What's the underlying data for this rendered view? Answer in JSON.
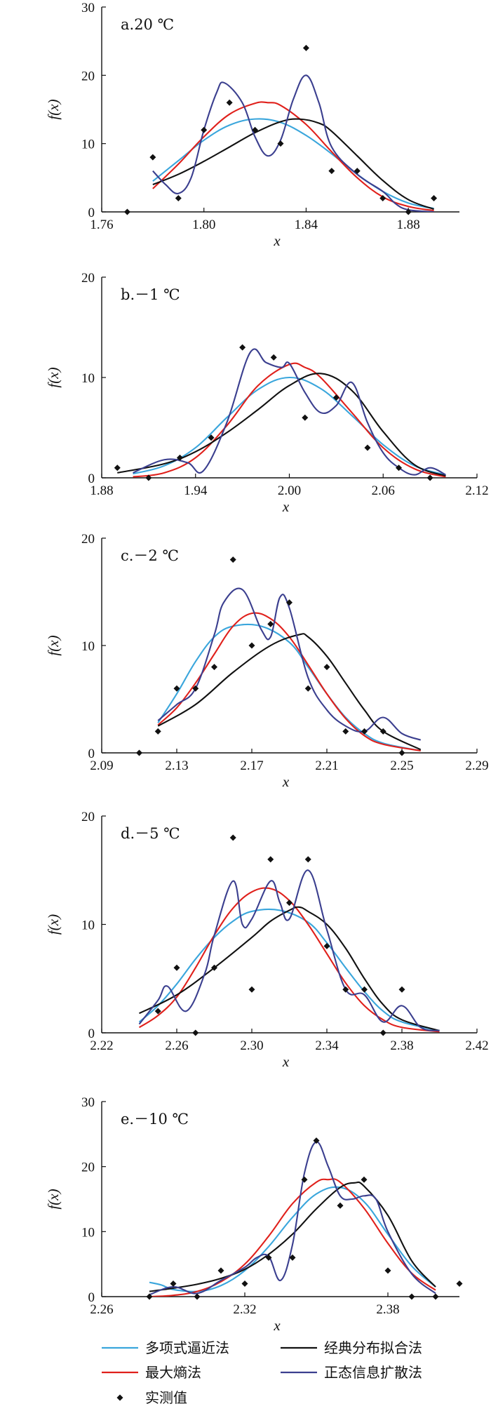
{
  "chart_data": [
    {
      "type": "line",
      "title": "a.20 ℃",
      "xlabel": "x",
      "ylabel": "f(x)",
      "xlim": [
        1.76,
        1.9
      ],
      "ylim": [
        0,
        30
      ],
      "xticks": [
        1.76,
        1.8,
        1.84,
        1.88
      ],
      "xtick_labels": [
        "1.76",
        "1.80",
        "1.84",
        "1.88"
      ],
      "yticks": [
        0,
        10,
        20,
        30
      ],
      "series": [
        {
          "name": "多项式逼近法",
          "x": [
            1.78,
            1.79,
            1.8,
            1.81,
            1.82,
            1.83,
            1.84,
            1.85,
            1.86,
            1.87,
            1.88,
            1.89
          ],
          "values": [
            4.5,
            7.5,
            10.5,
            12.7,
            13.6,
            13.1,
            11.2,
            8.5,
            5.5,
            3.0,
            1.3,
            0.5
          ]
        },
        {
          "name": "最大熵法",
          "x": [
            1.78,
            1.79,
            1.8,
            1.81,
            1.82,
            1.825,
            1.83,
            1.84,
            1.85,
            1.86,
            1.87,
            1.88,
            1.89
          ],
          "values": [
            3.4,
            7.0,
            11.0,
            14.3,
            15.9,
            16.0,
            15.6,
            12.8,
            8.8,
            5.0,
            2.2,
            0.8,
            0.2
          ]
        },
        {
          "name": "经典分布拟合法",
          "x": [
            1.78,
            1.79,
            1.8,
            1.81,
            1.82,
            1.83,
            1.837,
            1.845,
            1.85,
            1.86,
            1.87,
            1.88,
            1.89
          ],
          "values": [
            4.0,
            5.5,
            7.4,
            9.5,
            11.6,
            13.2,
            13.6,
            13.0,
            11.8,
            8.2,
            4.6,
            1.8,
            0.4
          ]
        },
        {
          "name": "正态信息扩散法",
          "x": [
            1.78,
            1.785,
            1.79,
            1.795,
            1.8,
            1.805,
            1.808,
            1.815,
            1.82,
            1.825,
            1.83,
            1.835,
            1.84,
            1.845,
            1.85,
            1.86,
            1.87,
            1.875,
            1.88,
            1.89
          ],
          "values": [
            6.0,
            4.0,
            2.7,
            5.0,
            12.0,
            17.5,
            18.9,
            16.0,
            11.0,
            8.2,
            10.5,
            16.5,
            20.0,
            16.0,
            9.5,
            5.5,
            3.0,
            1.2,
            0.3,
            0.0
          ]
        }
      ],
      "observed": {
        "name": "实测值",
        "x": [
          1.77,
          1.78,
          1.79,
          1.8,
          1.81,
          1.82,
          1.83,
          1.84,
          1.85,
          1.86,
          1.87,
          1.88,
          1.89
        ],
        "values": [
          0,
          8,
          2,
          12,
          16,
          12,
          10,
          24,
          6,
          6,
          2,
          0,
          2
        ]
      }
    },
    {
      "type": "line",
      "title": "b.－1 ℃",
      "xlabel": "x",
      "ylabel": "f(x)",
      "xlim": [
        1.88,
        2.12
      ],
      "ylim": [
        0,
        20
      ],
      "xticks": [
        1.88,
        1.94,
        2.0,
        2.06,
        2.12
      ],
      "xtick_labels": [
        "1.88",
        "1.94",
        "2.00",
        "2.06",
        "2.12"
      ],
      "yticks": [
        0,
        10,
        20
      ],
      "series": [
        {
          "name": "多项式逼近法",
          "x": [
            1.9,
            1.92,
            1.94,
            1.96,
            1.98,
            2.0,
            2.02,
            2.04,
            2.06,
            2.08,
            2.1
          ],
          "values": [
            0.4,
            1.2,
            3.0,
            6.0,
            8.8,
            10.0,
            8.9,
            6.2,
            3.3,
            1.2,
            0.3
          ]
        },
        {
          "name": "最大熵法",
          "x": [
            1.9,
            1.92,
            1.94,
            1.96,
            1.98,
            2.0,
            2.01,
            2.02,
            2.04,
            2.06,
            2.08,
            2.1
          ],
          "values": [
            0.1,
            0.5,
            2.0,
            5.2,
            9.2,
            11.3,
            11.0,
            10.0,
            6.5,
            3.0,
            0.9,
            0.1
          ]
        },
        {
          "name": "经典分布拟合法",
          "x": [
            1.89,
            1.92,
            1.94,
            1.96,
            1.98,
            2.0,
            2.02,
            2.04,
            2.06,
            2.08,
            2.1
          ],
          "values": [
            0.5,
            1.4,
            2.6,
            4.5,
            6.8,
            9.2,
            10.4,
            8.7,
            4.6,
            1.3,
            0.2
          ]
        },
        {
          "name": "正态信息扩散法",
          "x": [
            1.9,
            1.92,
            1.935,
            1.945,
            1.96,
            1.975,
            1.985,
            1.995,
            2.0,
            2.01,
            2.02,
            2.03,
            2.04,
            2.05,
            2.06,
            2.07,
            2.08,
            2.09,
            2.1
          ],
          "values": [
            0.5,
            1.8,
            1.5,
            0.7,
            5.5,
            12.5,
            11.5,
            11.0,
            11.4,
            8.5,
            6.5,
            7.2,
            9.5,
            5.5,
            2.5,
            1.0,
            0.3,
            1.0,
            0.3
          ]
        }
      ],
      "observed": {
        "name": "实测值",
        "x": [
          1.89,
          1.91,
          1.93,
          1.95,
          1.97,
          1.99,
          2.01,
          2.03,
          2.05,
          2.07,
          2.09
        ],
        "values": [
          1,
          0,
          2,
          4,
          13,
          12,
          6,
          8,
          3,
          1,
          0
        ]
      }
    },
    {
      "type": "line",
      "title": "c.－2 ℃",
      "xlabel": "x",
      "ylabel": "f(x)",
      "xlim": [
        2.09,
        2.29
      ],
      "ylim": [
        0,
        20
      ],
      "xticks": [
        2.09,
        2.13,
        2.17,
        2.21,
        2.25,
        2.29
      ],
      "xtick_labels": [
        "2.09",
        "2.13",
        "2.17",
        "2.21",
        "2.25",
        "2.29"
      ],
      "yticks": [
        0,
        10,
        20
      ],
      "series": [
        {
          "name": "多项式逼近法",
          "x": [
            2.12,
            2.13,
            2.14,
            2.15,
            2.16,
            2.175,
            2.19,
            2.2,
            2.21,
            2.22,
            2.23,
            2.24,
            2.26
          ],
          "values": [
            2.8,
            5.5,
            8.5,
            10.8,
            11.8,
            11.8,
            10.3,
            8.0,
            5.5,
            3.3,
            1.8,
            0.9,
            0.2
          ]
        },
        {
          "name": "最大熵法",
          "x": [
            2.12,
            2.13,
            2.14,
            2.15,
            2.16,
            2.17,
            2.18,
            2.19,
            2.2,
            2.21,
            2.22,
            2.23,
            2.24,
            2.26
          ],
          "values": [
            2.6,
            4.2,
            6.5,
            9.2,
            11.8,
            13.0,
            12.5,
            10.8,
            8.2,
            5.5,
            3.2,
            1.6,
            0.8,
            0.2
          ]
        },
        {
          "name": "经典分布拟合法",
          "x": [
            2.12,
            2.14,
            2.16,
            2.18,
            2.195,
            2.2,
            2.21,
            2.22,
            2.23,
            2.24,
            2.26
          ],
          "values": [
            2.5,
            4.5,
            7.5,
            10.0,
            11.0,
            10.8,
            9.0,
            6.5,
            4.0,
            2.0,
            0.3
          ]
        },
        {
          "name": "正态信息扩散法",
          "x": [
            2.12,
            2.13,
            2.14,
            2.15,
            2.155,
            2.165,
            2.175,
            2.18,
            2.185,
            2.19,
            2.2,
            2.21,
            2.22,
            2.23,
            2.24,
            2.25,
            2.26
          ],
          "values": [
            3.0,
            4.5,
            6.0,
            11.0,
            14.0,
            15.2,
            11.5,
            10.8,
            14.5,
            13.5,
            7.0,
            4.0,
            2.5,
            2.0,
            3.3,
            1.8,
            1.2
          ]
        }
      ],
      "observed": {
        "name": "实测值",
        "x": [
          2.11,
          2.12,
          2.13,
          2.14,
          2.15,
          2.16,
          2.17,
          2.18,
          2.19,
          2.2,
          2.21,
          2.22,
          2.23,
          2.24,
          2.25
        ],
        "values": [
          0,
          2,
          6,
          6,
          8,
          18,
          10,
          12,
          14,
          6,
          8,
          2,
          2,
          2,
          0
        ]
      }
    },
    {
      "type": "line",
      "title": "d.－5 ℃",
      "xlabel": "x",
      "ylabel": "f(x)",
      "xlim": [
        2.22,
        2.42
      ],
      "ylim": [
        0,
        20
      ],
      "xticks": [
        2.22,
        2.26,
        2.3,
        2.34,
        2.38,
        2.42
      ],
      "xtick_labels": [
        "2.22",
        "2.26",
        "2.30",
        "2.34",
        "2.38",
        "2.42"
      ],
      "yticks": [
        0,
        10,
        20
      ],
      "series": [
        {
          "name": "多项式逼近法",
          "x": [
            2.24,
            2.25,
            2.26,
            2.27,
            2.28,
            2.29,
            2.3,
            2.315,
            2.33,
            2.34,
            2.35,
            2.36,
            2.37,
            2.38,
            2.4
          ],
          "values": [
            1.0,
            2.5,
            4.5,
            6.8,
            8.8,
            10.3,
            11.2,
            11.3,
            10.2,
            8.3,
            6.0,
            3.8,
            2.0,
            1.0,
            0.2
          ]
        },
        {
          "name": "最大熵法",
          "x": [
            2.24,
            2.25,
            2.26,
            2.27,
            2.28,
            2.29,
            2.3,
            2.31,
            2.32,
            2.33,
            2.34,
            2.35,
            2.36,
            2.37,
            2.38,
            2.4
          ],
          "values": [
            0.5,
            1.6,
            3.3,
            6.0,
            9.0,
            11.5,
            13.0,
            13.3,
            12.2,
            10.0,
            7.3,
            4.6,
            2.5,
            1.2,
            0.5,
            0.1
          ]
        },
        {
          "name": "经典分布拟合法",
          "x": [
            2.24,
            2.26,
            2.28,
            2.3,
            2.31,
            2.32,
            2.325,
            2.33,
            2.34,
            2.35,
            2.36,
            2.37,
            2.38,
            2.4
          ],
          "values": [
            1.8,
            3.5,
            6.0,
            8.8,
            10.3,
            11.3,
            11.6,
            11.2,
            10.0,
            7.8,
            5.0,
            2.6,
            1.2,
            0.2
          ]
        },
        {
          "name": "正态信息扩散法",
          "x": [
            2.24,
            2.25,
            2.255,
            2.265,
            2.275,
            2.28,
            2.29,
            2.295,
            2.3,
            2.31,
            2.315,
            2.32,
            2.33,
            2.34,
            2.35,
            2.36,
            2.37,
            2.38,
            2.39,
            2.4
          ],
          "values": [
            0.8,
            3.0,
            4.3,
            2.0,
            5.5,
            9.0,
            14.0,
            10.0,
            10.5,
            14.0,
            12.0,
            10.5,
            15.0,
            9.5,
            4.0,
            3.5,
            1.0,
            2.5,
            0.5,
            0.2
          ]
        }
      ],
      "observed": {
        "name": "实测值",
        "x": [
          2.25,
          2.26,
          2.27,
          2.28,
          2.29,
          2.3,
          2.31,
          2.32,
          2.33,
          2.34,
          2.35,
          2.36,
          2.37,
          2.38
        ],
        "values": [
          2,
          6,
          0,
          6,
          18,
          4,
          16,
          12,
          16,
          8,
          4,
          4,
          0,
          4
        ]
      }
    },
    {
      "type": "line",
      "title": "e.－10 ℃",
      "xlabel": "x",
      "ylabel": "f(x)",
      "xlim": [
        2.26,
        2.41
      ],
      "ylim": [
        0,
        30
      ],
      "xticks": [
        2.26,
        2.32,
        2.38
      ],
      "xtick_labels": [
        "2.26",
        "2.32",
        "2.38"
      ],
      "yticks": [
        0,
        10,
        20,
        30
      ],
      "series": [
        {
          "name": "多项式逼近法",
          "x": [
            2.28,
            2.285,
            2.29,
            2.3,
            2.31,
            2.32,
            2.33,
            2.34,
            2.35,
            2.36,
            2.37,
            2.38,
            2.39,
            2.4
          ],
          "values": [
            2.2,
            1.8,
            1.1,
            0.8,
            1.7,
            4.0,
            7.7,
            12.2,
            15.8,
            16.8,
            14.6,
            9.6,
            4.7,
            1.5
          ]
        },
        {
          "name": "最大熵法",
          "x": [
            2.28,
            2.29,
            2.3,
            2.31,
            2.32,
            2.33,
            2.34,
            2.35,
            2.355,
            2.36,
            2.37,
            2.38,
            2.39,
            2.4
          ],
          "values": [
            0.0,
            0.2,
            0.8,
            2.3,
            5.0,
            9.3,
            14.3,
            17.6,
            18.0,
            17.6,
            13.6,
            8.2,
            3.6,
            1.0
          ]
        },
        {
          "name": "经典分布拟合法",
          "x": [
            2.28,
            2.29,
            2.3,
            2.31,
            2.32,
            2.33,
            2.34,
            2.35,
            2.36,
            2.366,
            2.37,
            2.38,
            2.39,
            2.4
          ],
          "values": [
            0.8,
            1.3,
            1.9,
            2.8,
            4.2,
            6.5,
            9.6,
            13.5,
            16.8,
            17.5,
            17.0,
            12.5,
            5.5,
            1.5
          ]
        },
        {
          "name": "正态信息扩散法",
          "x": [
            2.28,
            2.29,
            2.3,
            2.31,
            2.32,
            2.325,
            2.33,
            2.335,
            2.34,
            2.345,
            2.35,
            2.355,
            2.36,
            2.365,
            2.37,
            2.375,
            2.38,
            2.39,
            2.4
          ],
          "values": [
            0.3,
            1.5,
            0.5,
            2.5,
            4.5,
            6.0,
            6.2,
            2.5,
            8.0,
            19.0,
            23.8,
            20.0,
            15.5,
            15.0,
            15.5,
            15.0,
            10.0,
            3.5,
            0.5
          ]
        }
      ],
      "observed": {
        "name": "实测值",
        "x": [
          2.28,
          2.29,
          2.3,
          2.31,
          2.32,
          2.33,
          2.34,
          2.345,
          2.35,
          2.36,
          2.37,
          2.38,
          2.39,
          2.4,
          2.41
        ],
        "values": [
          0,
          2,
          0,
          4,
          2,
          6,
          6,
          18,
          24,
          14,
          18,
          4,
          0,
          0,
          2
        ]
      }
    }
  ],
  "legend": {
    "items": [
      {
        "name": "多项式逼近法",
        "color": "#3aa6dc",
        "type": "line"
      },
      {
        "name": "经典分布拟合法",
        "color": "#111111",
        "type": "line"
      },
      {
        "name": "最大熵法",
        "color": "#e0201b",
        "type": "line"
      },
      {
        "name": "正态信息扩散法",
        "color": "#3b3f8f",
        "type": "line"
      },
      {
        "name": "实测值",
        "color": "#111111",
        "type": "marker"
      }
    ]
  },
  "colors": {
    "多项式逼近法": "#3aa6dc",
    "最大熵法": "#e0201b",
    "经典分布拟合法": "#111111",
    "正态信息扩散法": "#3b3f8f",
    "实测值": "#111111"
  }
}
